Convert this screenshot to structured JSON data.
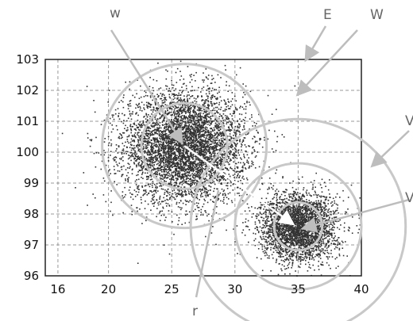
{
  "chart_data": {
    "type": "scatter",
    "xlim": [
      15,
      40
    ],
    "ylim": [
      96,
      103
    ],
    "xticks": [
      "16",
      "20",
      "25",
      "30",
      "35",
      "40"
    ],
    "yticks": [
      "96",
      "97",
      "98",
      "99",
      "100",
      "101",
      "102",
      "103"
    ],
    "grid": true,
    "clusters": [
      {
        "center": [
          26,
          100.2
        ],
        "spread": [
          4.8,
          0.9
        ],
        "count": 5200
      },
      {
        "center": [
          35,
          97.6
        ],
        "spread": [
          3.0,
          0.55
        ],
        "count": 3000
      }
    ],
    "circles": [
      {
        "center": [
          26,
          100.2
        ],
        "radius": 6.5,
        "color": "#c8c8c8"
      },
      {
        "center": [
          26,
          100.2
        ],
        "radius": 3.4,
        "color": "#c8c8c8"
      },
      {
        "center": [
          35,
          97.6
        ],
        "radius": 8.5,
        "color": "#c8c8c8"
      },
      {
        "center": [
          35,
          97.6
        ],
        "radius": 5.0,
        "color": "#c8c8c8"
      },
      {
        "center": [
          35,
          97.6
        ],
        "radius": 1.9,
        "color": "#c8c8c8"
      }
    ],
    "annotations": [
      {
        "text": "w"
      },
      {
        "text": "E"
      },
      {
        "text": "W"
      },
      {
        "text": "r"
      },
      {
        "text": "V"
      },
      {
        "text": "V"
      }
    ],
    "point_color": "#333333",
    "annotation_color": "#bdbdbd",
    "grid_color": "#999999"
  }
}
